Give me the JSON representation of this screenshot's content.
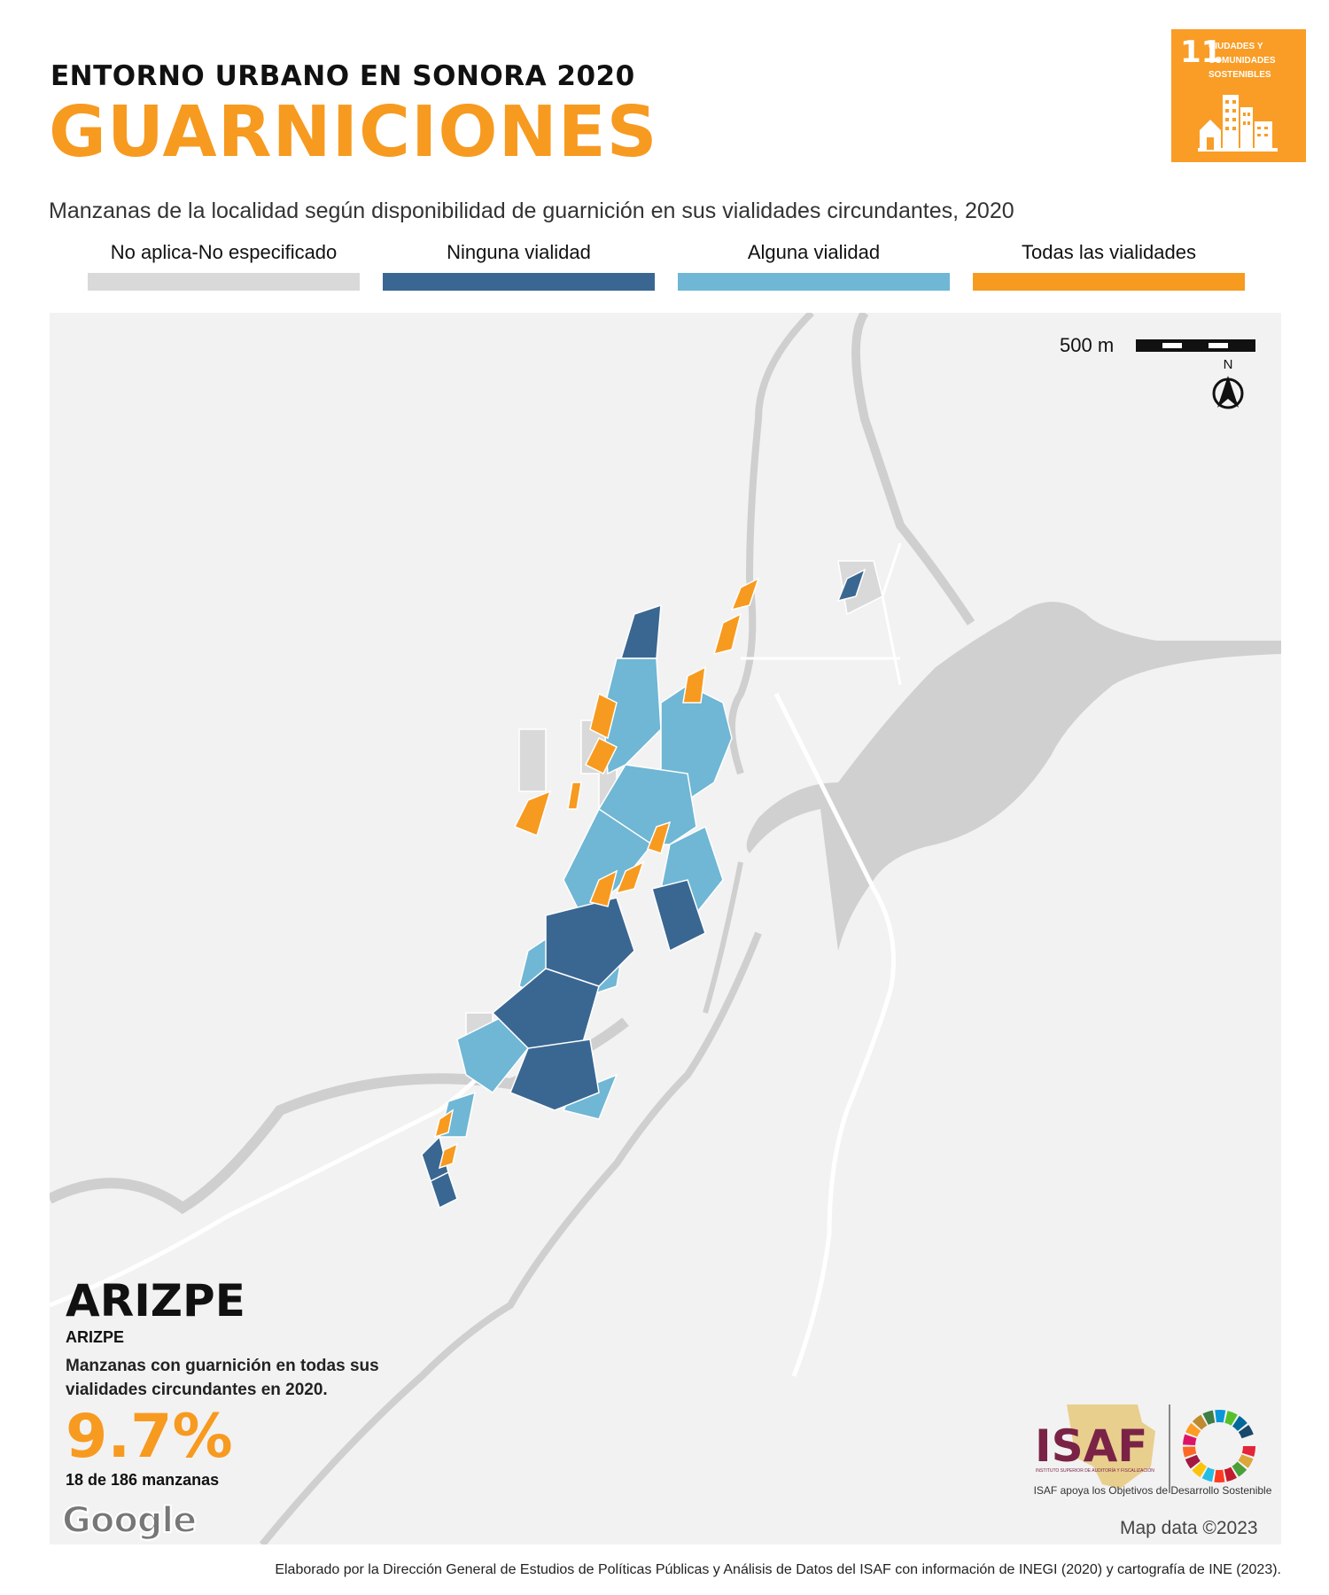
{
  "header": {
    "super_title": "ENTORNO URBANO EN SONORA 2020",
    "main_title": "GUARNICIONES",
    "subtitle": "Manzanas de la localidad según disponibilidad de guarnición en sus vialidades circundantes, 2020"
  },
  "sdg_badge": {
    "number": "11",
    "text": "CIUDADES Y COMUNIDADES SOSTENIBLES",
    "color": "#F99D26"
  },
  "legend": [
    {
      "label": "No aplica-No especificado",
      "color": "#D9D9D9"
    },
    {
      "label": "Ninguna vialidad",
      "color": "#3A6792"
    },
    {
      "label": "Alguna vialidad",
      "color": "#6FB7D4"
    },
    {
      "label": "Todas las vialidades",
      "color": "#F79A20"
    }
  ],
  "map": {
    "scale_label": "500 m",
    "north_label": "N",
    "credit": "Map data ©2023",
    "google": "Google"
  },
  "info": {
    "municipality": "ARIZPE",
    "locality": "ARIZPE",
    "description": "Manzanas con guarnición en todas sus vialidades circundantes en 2020.",
    "percent": "9.7%",
    "count": "18 de 186 manzanas"
  },
  "branding": {
    "isaf": "ISAF",
    "isaf_sub": "INSTITUTO SUPERIOR DE AUDITORÍA Y FISCALIZACIÓN",
    "tagline": "ISAF apoya los Objetivos de Desarrollo Sostenible"
  },
  "footer": "Elaborado por la Dirección General de Estudios de Políticas Públicas y Análisis de Datos del ISAF con información de INEGI (2020) y cartografía de INE (2023)."
}
